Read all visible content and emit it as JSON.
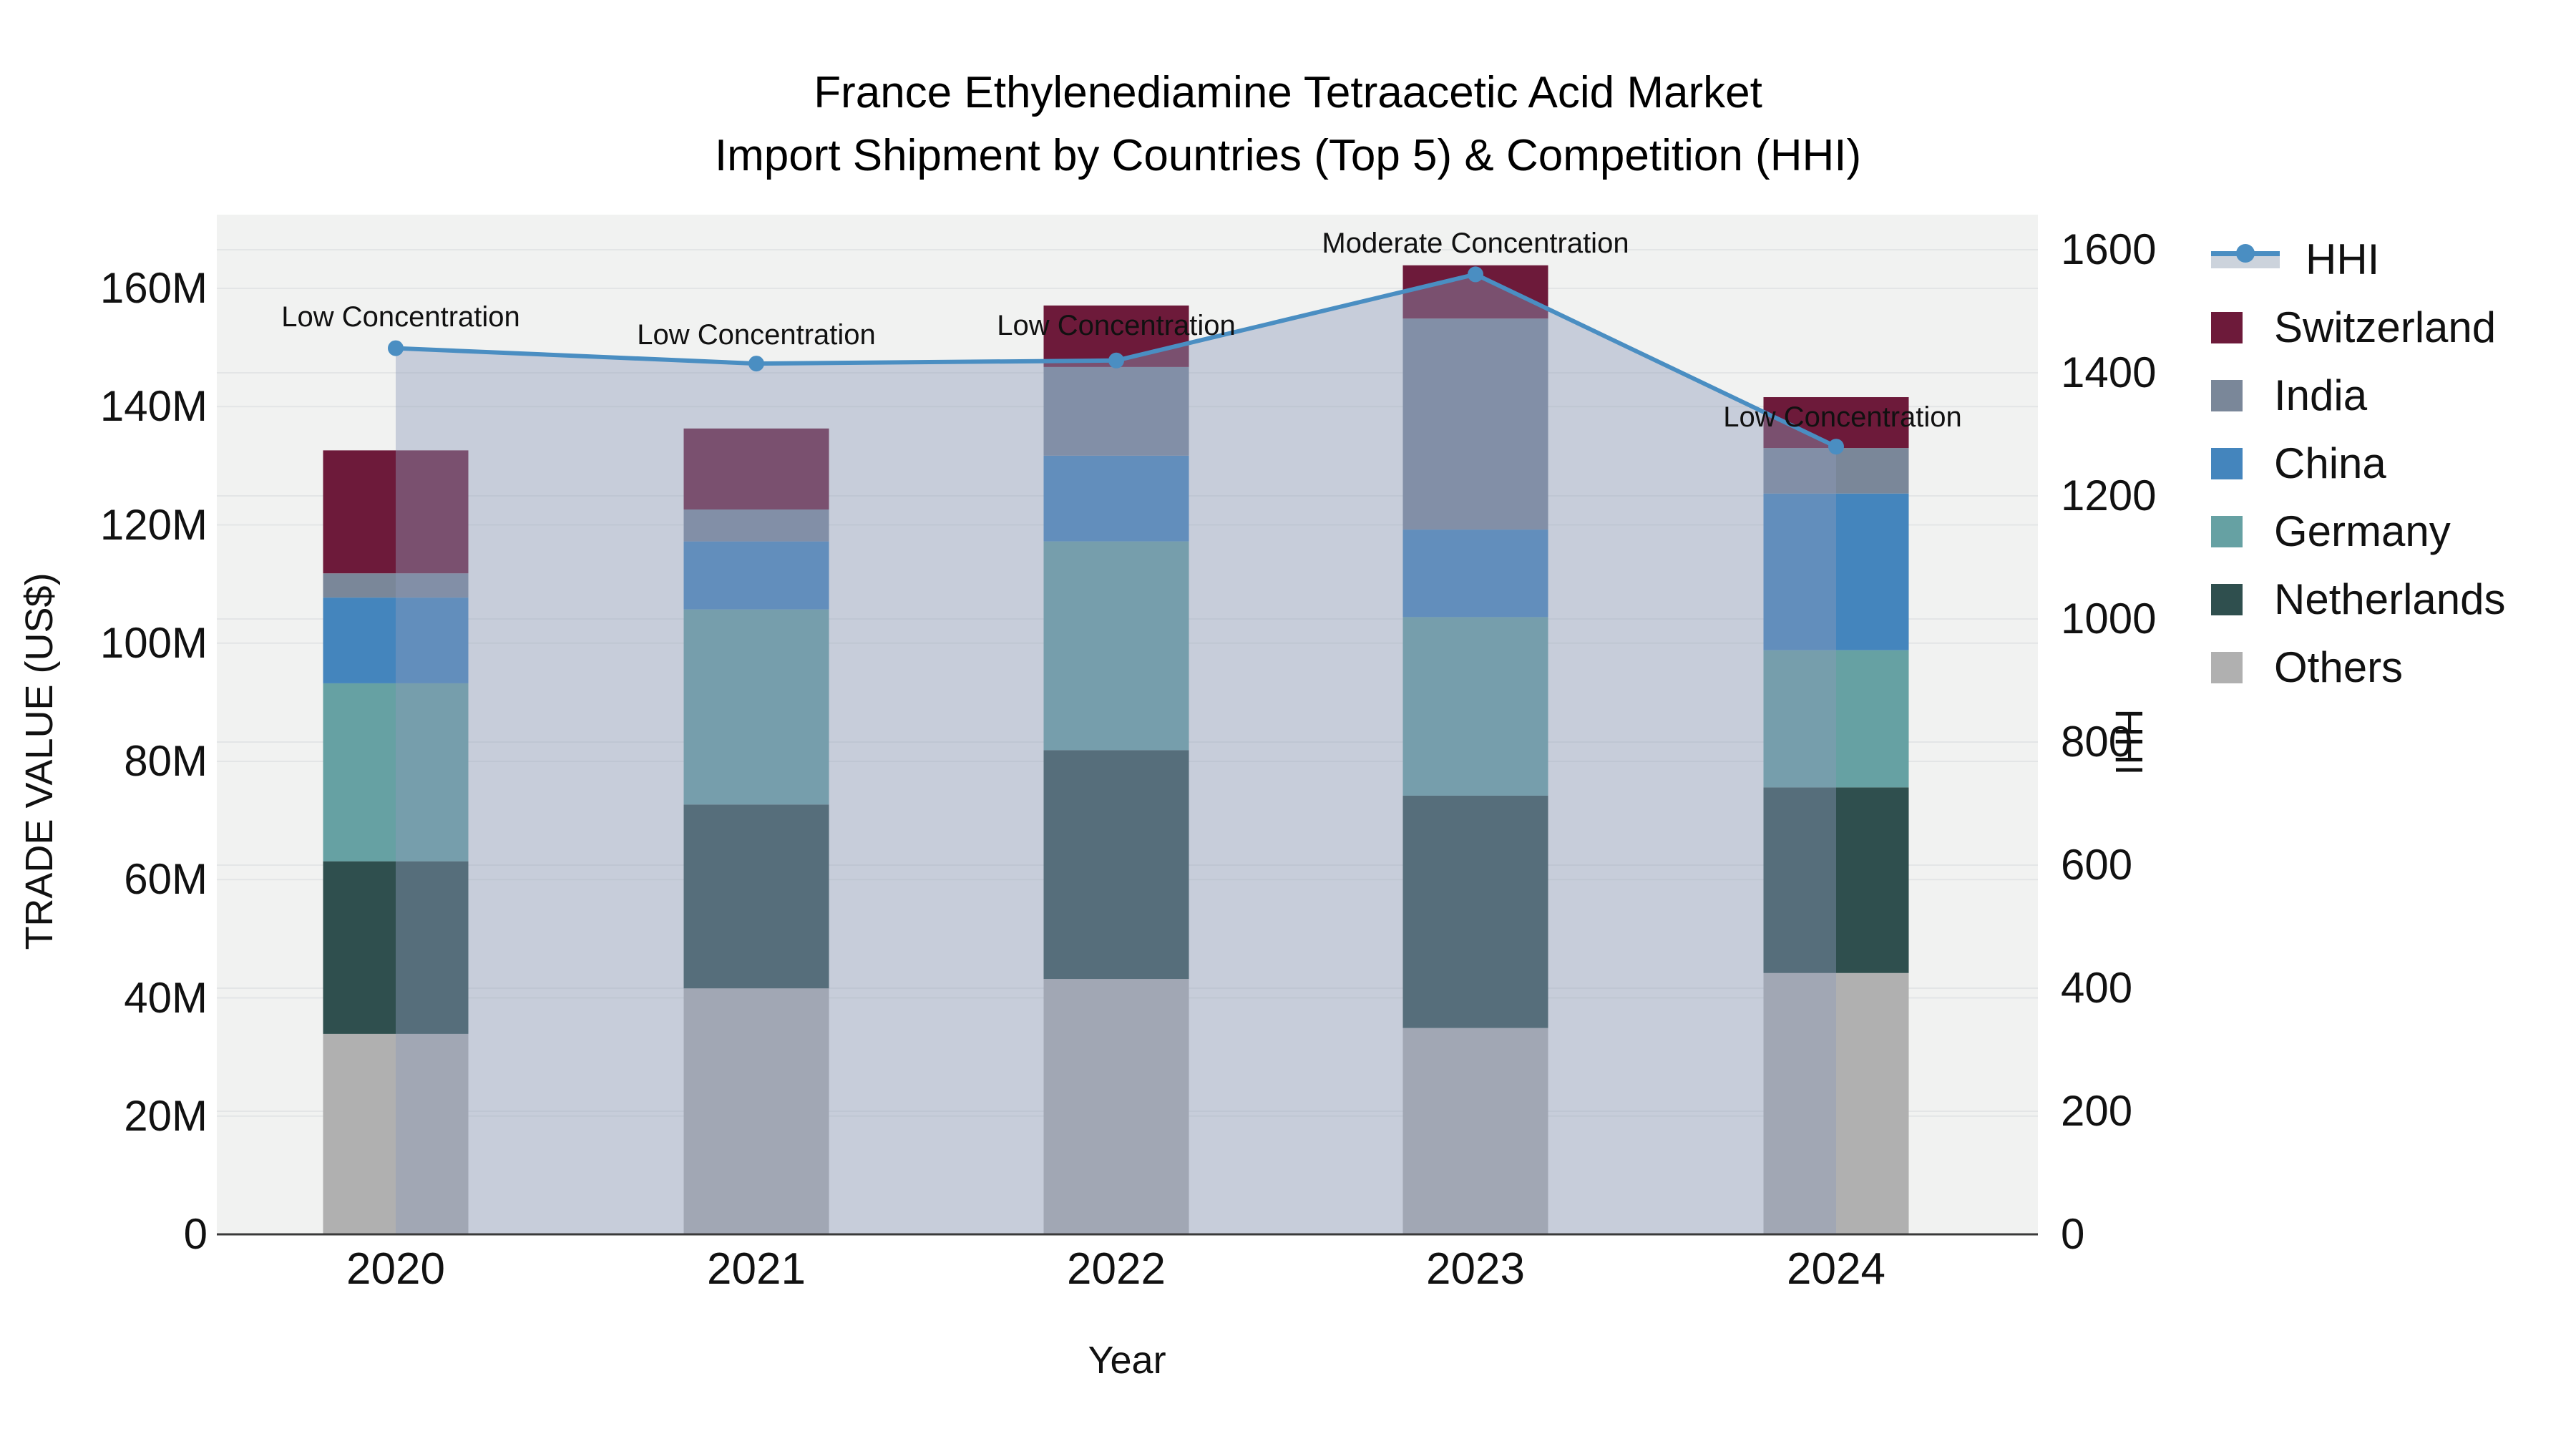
{
  "title": {
    "line1": "France Ethylenediamine Tetraacetic Acid Market",
    "line2": "Import Shipment by Countries (Top 5) & Competition (HHI)"
  },
  "axes": {
    "x": {
      "title": "Year",
      "ticks": [
        "2020",
        "2021",
        "2022",
        "2023",
        "2024"
      ]
    },
    "y_left": {
      "title": "TRADE VALUE (US$)",
      "ticks": [
        "0",
        "20M",
        "40M",
        "60M",
        "80M",
        "100M",
        "120M",
        "140M",
        "160M"
      ]
    },
    "y_right": {
      "title": "HHI",
      "ticks": [
        "0",
        "200",
        "400",
        "600",
        "800",
        "1000",
        "1200",
        "1400",
        "1600"
      ]
    }
  },
  "legend": {
    "items": [
      {
        "label": "HHI",
        "kind": "line"
      },
      {
        "label": "Switzerland",
        "kind": "swatch",
        "color": "#6d1a3a"
      },
      {
        "label": "India",
        "kind": "swatch",
        "color": "#7a8799"
      },
      {
        "label": "China",
        "kind": "swatch",
        "color": "#4485bd"
      },
      {
        "label": "Germany",
        "kind": "swatch",
        "color": "#66a1a3"
      },
      {
        "label": "Netherlands",
        "kind": "swatch",
        "color": "#2f4f4e"
      },
      {
        "label": "Others",
        "kind": "swatch",
        "color": "#b0b0b0"
      }
    ]
  },
  "colors": {
    "hhi_line": "#4a8ec2",
    "hhi_area": "rgba(140,155,185,0.42)",
    "hhi_legend_band": "#ccd3dc",
    "plot_bg": "#f1f2f1",
    "gridline": "#e3e5e6",
    "axis_line": "#3a3a3a",
    "switzerland": "#6d1a3a",
    "india": "#7a8799",
    "china": "#4485bd",
    "germany": "#66a1a3",
    "netherlands": "#2f4f4e",
    "others": "#b0b0b0"
  },
  "chart_data": {
    "type": "bar",
    "subtype": "stacked bars with line on secondary axis",
    "title": "France Ethylenediamine Tetraacetic Acid Market Import Shipment by Countries (Top 5) & Competition (HHI)",
    "xlabel": "Year",
    "ylabel_left": "TRADE VALUE (US$)",
    "ylabel_right": "HHI",
    "categories": [
      "2020",
      "2021",
      "2022",
      "2023",
      "2024"
    ],
    "unit": "millions of US$",
    "ylim_left": [
      0,
      160
    ],
    "ylim_right": [
      0,
      1600
    ],
    "grid": true,
    "legend_position": "right",
    "series": [
      {
        "name": "Others",
        "values": [
          33.9,
          41.6,
          43.2,
          34.9,
          44.2
        ]
      },
      {
        "name": "Netherlands",
        "values": [
          29.2,
          31.1,
          38.7,
          39.3,
          31.4
        ]
      },
      {
        "name": "Germany",
        "values": [
          30.1,
          33.0,
          35.3,
          30.2,
          23.2
        ]
      },
      {
        "name": "China",
        "values": [
          14.5,
          11.5,
          14.5,
          14.8,
          26.5
        ]
      },
      {
        "name": "India",
        "values": [
          4.1,
          5.4,
          15.0,
          35.7,
          7.7
        ]
      },
      {
        "name": "Switzerland",
        "values": [
          20.8,
          13.7,
          10.4,
          9.0,
          8.6
        ]
      }
    ],
    "totals": [
      132.6,
      136.3,
      157.1,
      163.9,
      141.6
    ],
    "line_series": {
      "name": "HHI",
      "axis": "right",
      "values": [
        1440,
        1415,
        1420,
        1560,
        1280
      ]
    },
    "annotations": [
      {
        "text": "Low Concentration",
        "x": 560,
        "y": 443
      },
      {
        "text": "Low Concentration",
        "x": 1057,
        "y": 468
      },
      {
        "text": "Low Concentration",
        "x": 1560,
        "y": 455
      },
      {
        "text": "Moderate Concentration",
        "x": 2062,
        "y": 340
      },
      {
        "text": "Low Concentration",
        "x": 2575,
        "y": 583
      }
    ]
  }
}
